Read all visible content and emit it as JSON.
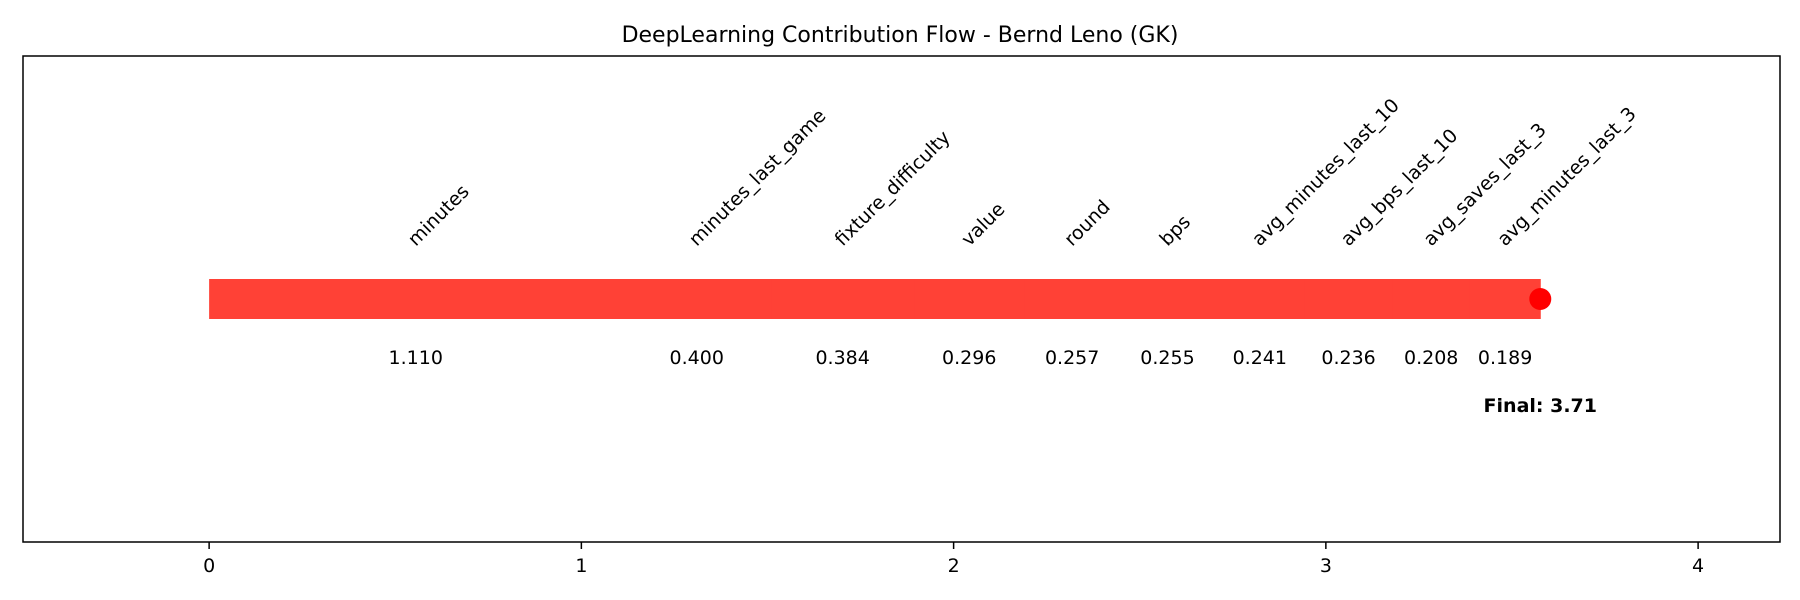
{
  "chart_data": {
    "type": "bar",
    "title": "DeepLearning Contribution Flow - Bernd Leno (GK)",
    "xlabel": "",
    "ylabel": "",
    "xlim": [
      -0.5,
      4.22
    ],
    "xticks": [
      0,
      1,
      2,
      3,
      4
    ],
    "xtick_labels": [
      "0",
      "1",
      "2",
      "3",
      "4"
    ],
    "grid": false,
    "bar_color": "#ff4136",
    "endpoint_color": "#ff0000",
    "segments": [
      {
        "feature": "minutes",
        "value": 1.11,
        "value_label": "1.110"
      },
      {
        "feature": "minutes_last_game",
        "value": 0.4,
        "value_label": "0.400"
      },
      {
        "feature": "fixture_difficulty",
        "value": 0.384,
        "value_label": "0.384"
      },
      {
        "feature": "value",
        "value": 0.296,
        "value_label": "0.296"
      },
      {
        "feature": "round",
        "value": 0.257,
        "value_label": "0.257"
      },
      {
        "feature": "bps",
        "value": 0.255,
        "value_label": "0.255"
      },
      {
        "feature": "avg_minutes_last_10",
        "value": 0.241,
        "value_label": "0.241"
      },
      {
        "feature": "avg_bps_last_10",
        "value": 0.236,
        "value_label": "0.236"
      },
      {
        "feature": "avg_saves_last_3",
        "value": 0.208,
        "value_label": "0.208"
      },
      {
        "feature": "avg_minutes_last_3",
        "value": 0.189,
        "value_label": "0.189"
      }
    ],
    "final_label": "Final: 3.71"
  }
}
